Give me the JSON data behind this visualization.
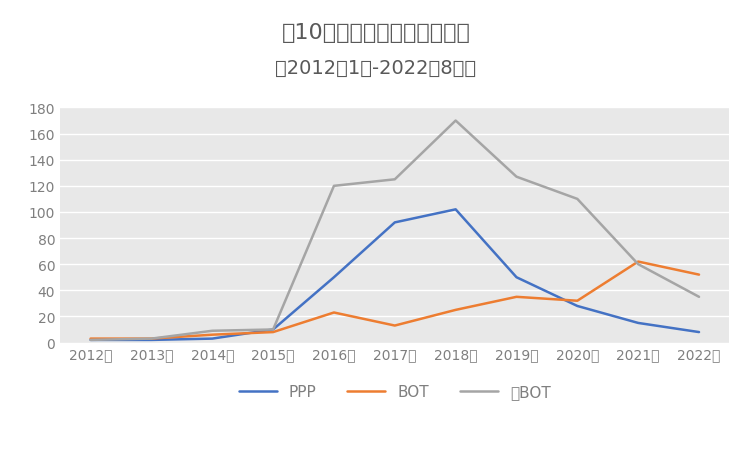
{
  "title_line1": "近10年环卫特许经营项目走图",
  "title_line2": "（2012年1月-2022年8月）",
  "years": [
    "2012年",
    "2013年",
    "2014年",
    "2015年",
    "2016年",
    "2017年",
    "2018年",
    "2019年",
    "2020年",
    "2021年",
    "2022年"
  ],
  "PPP": [
    2,
    2,
    3,
    10,
    50,
    92,
    102,
    50,
    28,
    15,
    8
  ],
  "BOT": [
    3,
    3,
    6,
    8,
    23,
    13,
    25,
    35,
    32,
    62,
    52
  ],
  "quasibot": [
    2,
    3,
    9,
    10,
    120,
    125,
    170,
    127,
    110,
    60,
    35
  ],
  "PPP_color": "#4472c4",
  "BOT_color": "#ed7d31",
  "quasibot_color": "#a5a5a5",
  "background_color": "#e8e8e8",
  "grid_color": "#ffffff",
  "ylim_min": 0,
  "ylim_max": 180,
  "yticks": [
    0,
    20,
    40,
    60,
    80,
    100,
    120,
    140,
    160,
    180
  ],
  "title_color": "#595959",
  "axis_color": "#7f7f7f",
  "legend_labels": [
    "PPP",
    "BOT",
    "准BOT"
  ],
  "title_fontsize": 16,
  "subtitle_fontsize": 14,
  "tick_fontsize": 10,
  "legend_fontsize": 11
}
